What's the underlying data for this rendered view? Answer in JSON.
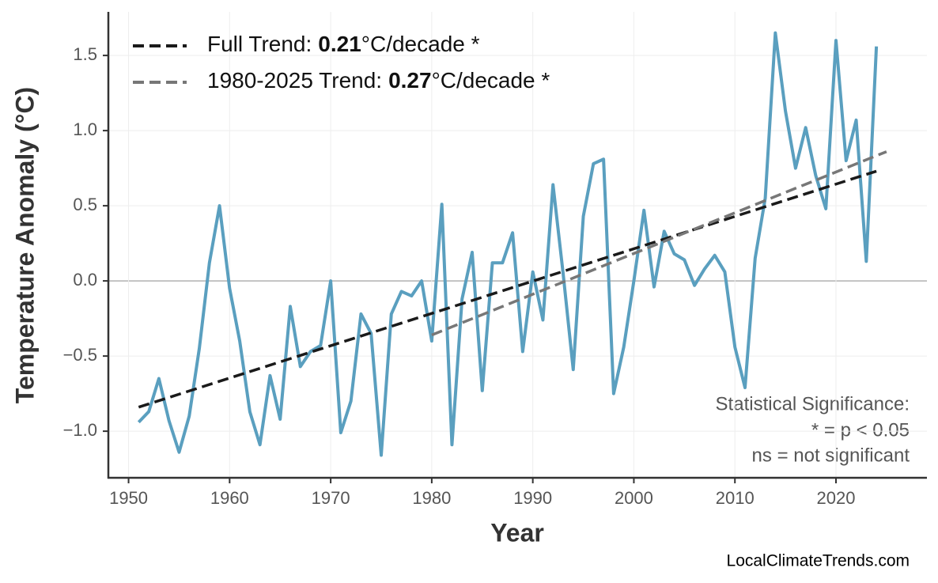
{
  "chart_data": {
    "type": "line",
    "xlabel": "Year",
    "ylabel": "Temperature Anomaly (°C)",
    "x": [
      1951,
      1952,
      1953,
      1954,
      1955,
      1956,
      1957,
      1958,
      1959,
      1960,
      1961,
      1962,
      1963,
      1964,
      1965,
      1966,
      1967,
      1968,
      1969,
      1970,
      1971,
      1972,
      1973,
      1974,
      1975,
      1976,
      1977,
      1978,
      1979,
      1980,
      1981,
      1982,
      1983,
      1984,
      1985,
      1986,
      1987,
      1988,
      1989,
      1990,
      1991,
      1992,
      1993,
      1994,
      1995,
      1996,
      1997,
      1998,
      1999,
      2000,
      2001,
      2002,
      2003,
      2004,
      2005,
      2006,
      2007,
      2008,
      2009,
      2010,
      2011,
      2012,
      2013,
      2014,
      2015,
      2016,
      2017,
      2018,
      2019,
      2020,
      2021,
      2022,
      2023,
      2024
    ],
    "series": [
      {
        "color": "#5a9fbf",
        "values": [
          -0.94,
          -0.87,
          -0.65,
          -0.93,
          -1.14,
          -0.9,
          -0.45,
          0.12,
          0.5,
          -0.05,
          -0.4,
          -0.87,
          -1.09,
          -0.63,
          -0.92,
          -0.17,
          -0.57,
          -0.47,
          -0.43,
          0.0,
          -1.01,
          -0.8,
          -0.22,
          -0.35,
          -1.16,
          -0.22,
          -0.07,
          -0.1,
          0.0,
          -0.4,
          0.51,
          -1.09,
          -0.12,
          0.19,
          -0.73,
          0.12,
          0.12,
          0.32,
          -0.47,
          0.06,
          -0.26,
          0.64,
          0.05,
          -0.59,
          0.43,
          0.78,
          0.81,
          -0.75,
          -0.44,
          0.0,
          0.47,
          -0.04,
          0.33,
          0.18,
          0.14,
          -0.03,
          0.08,
          0.17,
          0.06,
          -0.44,
          -0.71,
          0.15,
          0.55,
          1.65,
          1.13,
          0.75,
          1.02,
          0.7,
          0.48,
          1.6,
          0.8,
          1.07,
          0.13,
          1.56
        ]
      },
      {
        "name": "Full Trend:",
        "rate": 0.21,
        "rate_unit": "°C/decade *",
        "color": "#1a1a1a",
        "dashed": true,
        "x": [
          1951,
          2024
        ],
        "values": [
          -0.84,
          0.73
        ]
      },
      {
        "name": "1980-2025 Trend:",
        "rate": 0.27,
        "rate_unit": "°C/decade *",
        "color": "#777777",
        "dashed": true,
        "x": [
          1980,
          2025
        ],
        "values": [
          -0.36,
          0.86
        ]
      }
    ],
    "xlim": [
      1948,
      2029
    ],
    "ylim": [
      -1.31,
      1.79
    ],
    "xticks": [
      1950,
      1960,
      1970,
      1980,
      1990,
      2000,
      2010,
      2020
    ],
    "yticks": [
      {
        "value": -1.0,
        "label": "−1.0"
      },
      {
        "value": -0.5,
        "label": "−0.5"
      },
      {
        "value": 0.0,
        "label": "0.0"
      },
      {
        "value": 0.5,
        "label": "0.5"
      },
      {
        "value": 1.0,
        "label": "1.0"
      },
      {
        "value": 1.5,
        "label": "1.5"
      }
    ],
    "grid": true,
    "legend": "upper left",
    "annotation": [
      "Statistical Significance:",
      "* = p < 0.05",
      "ns = not significant"
    ],
    "source": "LocalClimateTrends.com"
  }
}
